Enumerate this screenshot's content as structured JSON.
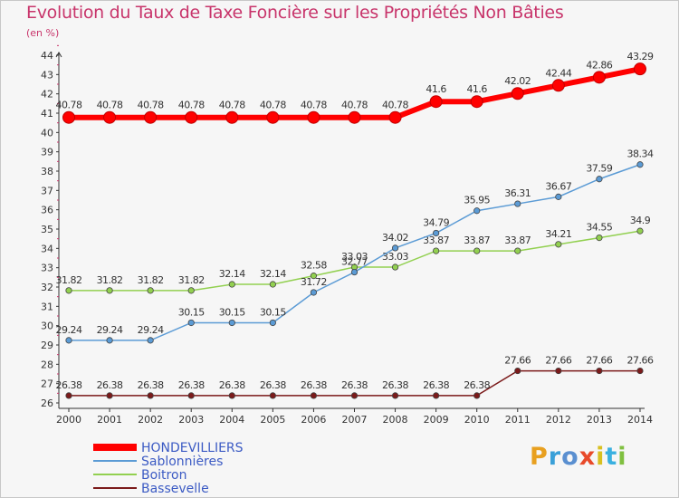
{
  "chart_data": {
    "type": "line",
    "title": "Evolution du Taux de Taxe Foncière sur les Propriétés Non Bâties",
    "unit_label": "(en %)",
    "x": [
      "2000",
      "2001",
      "2002",
      "2003",
      "2004",
      "2005",
      "2006",
      "2007",
      "2008",
      "2009",
      "2010",
      "2011",
      "2012",
      "2013",
      "2014"
    ],
    "ylim": [
      26,
      44
    ],
    "yticks": [
      "26",
      "27",
      "28",
      "29",
      "30",
      "31",
      "32",
      "33",
      "34",
      "35",
      "36",
      "37",
      "38",
      "39",
      "40",
      "41",
      "42",
      "43",
      "44"
    ],
    "grid": false,
    "legend_position": "bottom-left",
    "series": [
      {
        "name": "HONDEVILLIERS",
        "color": "#ff0000",
        "values": [
          40.78,
          40.78,
          40.78,
          40.78,
          40.78,
          40.78,
          40.78,
          40.78,
          40.78,
          41.6,
          41.6,
          42.02,
          42.44,
          42.86,
          43.29
        ],
        "labels": [
          "40.78",
          "40.78",
          "40.78",
          "40.78",
          "40.78",
          "40.78",
          "40.78",
          "40.78",
          "40.78",
          "41.6",
          "41.6",
          "42.02",
          "42.44",
          "42.86",
          "43.29"
        ]
      },
      {
        "name": "Sablonnières",
        "color": "#5b9bd5",
        "values": [
          29.24,
          29.24,
          29.24,
          30.15,
          30.15,
          30.15,
          31.72,
          32.77,
          34.02,
          34.79,
          35.95,
          36.31,
          36.67,
          37.59,
          38.34
        ],
        "labels": [
          "29.24",
          "29.24",
          "29.24",
          "30.15",
          "30.15",
          "30.15",
          "31.72",
          "32.77",
          "34.02",
          "34.79",
          "35.95",
          "36.31",
          "36.67",
          "37.59",
          "38.34"
        ]
      },
      {
        "name": "Boitron",
        "color": "#92d050",
        "values": [
          31.82,
          31.82,
          31.82,
          31.82,
          32.14,
          32.14,
          32.58,
          33.03,
          33.03,
          33.87,
          33.87,
          33.87,
          34.21,
          34.55,
          34.9
        ],
        "labels": [
          "31.82",
          "31.82",
          "31.82",
          "31.82",
          "32.14",
          "32.14",
          "32.58",
          "33.03",
          "33.03",
          "33.87",
          "33.87",
          "33.87",
          "34.21",
          "34.55",
          "34.9"
        ]
      },
      {
        "name": "Bassevelle",
        "color": "#7b1a1a",
        "values": [
          26.38,
          26.38,
          26.38,
          26.38,
          26.38,
          26.38,
          26.38,
          26.38,
          26.38,
          26.38,
          26.38,
          27.66,
          27.66,
          27.66,
          27.66
        ],
        "labels": [
          "26.38",
          "26.38",
          "26.38",
          "26.38",
          "26.38",
          "26.38",
          "26.38",
          "26.38",
          "26.38",
          "26.38",
          "26.38",
          "27.66",
          "27.66",
          "27.66",
          "27.66"
        ]
      }
    ]
  },
  "logo": {
    "text": "Proxiti"
  }
}
